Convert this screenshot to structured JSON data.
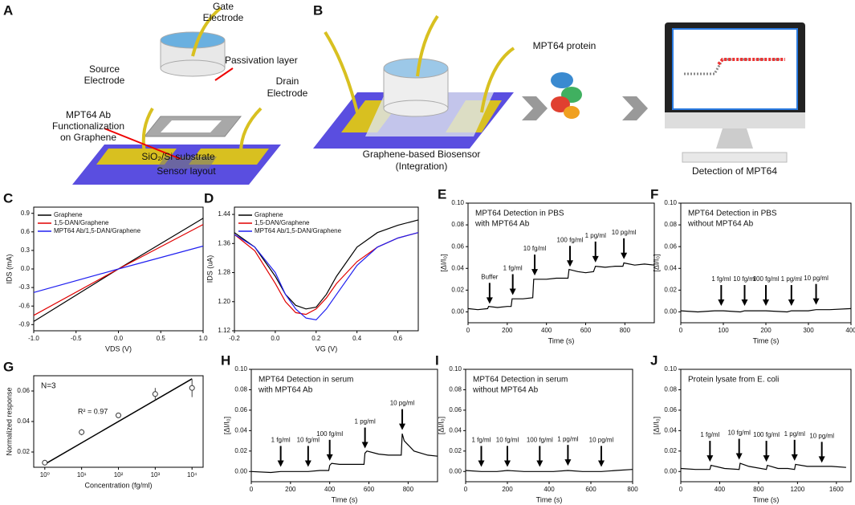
{
  "schematic": {
    "panel_a": "A",
    "panel_b": "B",
    "gate": [
      "Gate",
      "Electrode"
    ],
    "source": [
      "Source",
      "Electrode"
    ],
    "passivation": "Passivation layer",
    "drain": [
      "Drain",
      "Electrode"
    ],
    "ab": [
      "MPT64 Ab",
      "Functionalization",
      "on Graphene"
    ],
    "substrate": "SiO₂/Si substrate",
    "caption_a": "Sensor layout",
    "protein": "MPT64 protein",
    "caption_b": [
      "Graphene-based Biosensor",
      "(Integration)"
    ],
    "caption_c": "Detection of MPT64"
  },
  "chart_data": [
    {
      "type": "line",
      "panel": "C",
      "xlabel": "VDS (V)",
      "ylabel": "IDS (mA)",
      "legend": "upper left",
      "xlim": [
        -1,
        1
      ],
      "ylim": [
        -1.0,
        1.0
      ],
      "xticks": [
        {
          "value": -1,
          "label": "-1.0"
        },
        -0.5,
        {
          "value": 0,
          "label": "0.0"
        },
        0.5,
        {
          "value": 1,
          "label": "1.0"
        }
      ],
      "yticks": [
        -0.9,
        -0.6,
        -0.3,
        {
          "value": 0,
          "label": "0.0"
        },
        0.3,
        0.6,
        0.9
      ],
      "x": [
        -1,
        0,
        1
      ],
      "series": [
        {
          "name": "Graphene",
          "color": "#000000",
          "values": [
            -0.85,
            0,
            0.82
          ]
        },
        {
          "name": "1,5-DAN/Graphene",
          "color": "#e00000",
          "values": [
            -0.75,
            0,
            0.72
          ]
        },
        {
          "name": "MPT64 Ab/1,5-DAN/Graphene",
          "color": "#2020f0",
          "values": [
            -0.38,
            0,
            0.37
          ]
        }
      ]
    },
    {
      "type": "line",
      "panel": "D",
      "xlabel": "VG (V)",
      "ylabel": "IDS (uA)",
      "legend": "upper left",
      "xlim": [
        -0.2,
        0.7
      ],
      "ylim": [
        1.12,
        1.46
      ],
      "xticks": [
        -0.2,
        {
          "value": 0,
          "label": "0.0"
        },
        0.2,
        0.4,
        0.6
      ],
      "yticks": [
        1.12,
        {
          "value": 1.2,
          "label": "1.20"
        },
        1.28,
        1.36,
        1.44
      ],
      "x": [
        -0.2,
        -0.1,
        0,
        0.05,
        0.1,
        0.15,
        0.2,
        0.25,
        0.3,
        0.4,
        0.5,
        0.6,
        0.7
      ],
      "series": [
        {
          "name": "Graphene",
          "color": "#000000",
          "values": [
            1.39,
            1.35,
            1.27,
            1.22,
            1.19,
            1.18,
            1.185,
            1.22,
            1.27,
            1.35,
            1.39,
            1.41,
            1.425
          ]
        },
        {
          "name": "1,5-DAN/Graphene",
          "color": "#e00000",
          "values": [
            1.385,
            1.34,
            1.25,
            1.2,
            1.17,
            1.165,
            1.18,
            1.21,
            1.25,
            1.31,
            1.35,
            1.375,
            1.39
          ]
        },
        {
          "name": "MPT64 Ab/1,5-DAN/Graphene",
          "color": "#2020f0",
          "values": [
            1.385,
            1.35,
            1.28,
            1.22,
            1.18,
            1.155,
            1.15,
            1.18,
            1.22,
            1.3,
            1.35,
            1.375,
            1.39
          ]
        }
      ]
    },
    {
      "type": "line",
      "panel": "E",
      "xlabel": "Time (s)",
      "ylabel": "[ΔI/I₀]",
      "note": [
        "MPT64 Detection in PBS",
        "with MPT64 Ab"
      ],
      "xlim": [
        0,
        950
      ],
      "ylim": [
        -0.01,
        0.1
      ],
      "xticks": [
        0,
        200,
        400,
        600,
        800
      ],
      "yticks": [
        {
          "value": 0,
          "label": "0.00"
        },
        0.02,
        0.04,
        0.06,
        0.08,
        {
          "value": 0.1,
          "label": "0.10"
        }
      ],
      "x": [
        0,
        50,
        100,
        105,
        150,
        200,
        220,
        225,
        280,
        330,
        335,
        400,
        450,
        510,
        515,
        560,
        600,
        640,
        650,
        700,
        750,
        790,
        795,
        850,
        900,
        950
      ],
      "series": [
        {
          "color": "#000000",
          "values": [
            0.003,
            0.002,
            0.003,
            0.005,
            0.004,
            0.005,
            0.005,
            0.012,
            0.012,
            0.013,
            0.03,
            0.03,
            0.031,
            0.031,
            0.039,
            0.037,
            0.036,
            0.037,
            0.042,
            0.041,
            0.042,
            0.042,
            0.045,
            0.043,
            0.044,
            0.043
          ]
        }
      ],
      "annotations": [
        {
          "text": "Buffer",
          "x": 110,
          "y": 0.006
        },
        {
          "text": "1 fg/ml",
          "x": 228,
          "y": 0.014
        },
        {
          "text": "10 fg/ml",
          "x": 340,
          "y": 0.032
        },
        {
          "text": "100 fg/ml",
          "x": 520,
          "y": 0.04
        },
        {
          "text": "1 pg/ml",
          "x": 650,
          "y": 0.044
        },
        {
          "text": "10 pg/ml",
          "x": 795,
          "y": 0.047
        }
      ]
    },
    {
      "type": "line",
      "panel": "F",
      "xlabel": "Time (s)",
      "ylabel": "[ΔI/I₀]",
      "note": [
        "MPT64 Detection in PBS",
        "without MPT64 Ab"
      ],
      "xlim": [
        0,
        400
      ],
      "ylim": [
        -0.01,
        0.1
      ],
      "xticks": [
        0,
        100,
        200,
        300,
        400
      ],
      "yticks": [
        {
          "value": 0,
          "label": "0.00"
        },
        0.02,
        0.04,
        0.06,
        0.08,
        {
          "value": 0.1,
          "label": "0.10"
        }
      ],
      "x": [
        0,
        40,
        80,
        95,
        100,
        140,
        150,
        200,
        250,
        260,
        300,
        318,
        350,
        400
      ],
      "series": [
        {
          "color": "#000000",
          "values": [
            0.001,
            0,
            0.001,
            0.001,
            0.001,
            0,
            0.001,
            0.001,
            0,
            0.001,
            0.001,
            0.002,
            0.002,
            0.003
          ]
        }
      ],
      "annotations": [
        {
          "text": "1 fg/ml",
          "x": 95,
          "y": 0.004
        },
        {
          "text": "10 fg/ml",
          "x": 150,
          "y": 0.004
        },
        {
          "text": "100 fg/ml",
          "x": 200,
          "y": 0.004
        },
        {
          "text": "1 pg/ml",
          "x": 260,
          "y": 0.004
        },
        {
          "text": "10 pg/ml",
          "x": 318,
          "y": 0.005
        }
      ]
    },
    {
      "type": "scatter",
      "panel": "G",
      "xlabel": "Concentration (fg/ml)",
      "ylabel": "Normalized response",
      "xlog": true,
      "note": [
        "N=3"
      ],
      "fit_label": "R² = 0.97",
      "xlim": [
        0.5,
        20000
      ],
      "ylim": [
        0.01,
        0.07
      ],
      "xticks": [
        {
          "value": 1,
          "label": "10⁰"
        },
        {
          "value": 10,
          "label": "10¹"
        },
        {
          "value": 100,
          "label": "10²"
        },
        {
          "value": 1000,
          "label": "10³"
        },
        {
          "value": 10000,
          "label": "10⁴"
        }
      ],
      "yticks": [
        0.02,
        0.04,
        0.06
      ],
      "x": [
        1,
        10,
        100,
        1000,
        10000
      ],
      "values": [
        0.013,
        0.033,
        0.044,
        0.058,
        0.062
      ],
      "errors": [
        0.0005,
        0.002,
        0.001,
        0.004,
        0.006
      ],
      "fit": {
        "x": [
          1,
          10000
        ],
        "values": [
          0.012,
          0.068
        ]
      }
    },
    {
      "type": "line",
      "panel": "H",
      "xlabel": "Time (s)",
      "ylabel": "[ΔI/I₀]",
      "note": [
        "MPT64 Detection in serum",
        "with MPT64 Ab"
      ],
      "xlim": [
        0,
        950
      ],
      "ylim": [
        -0.01,
        0.1
      ],
      "xticks": [
        0,
        200,
        400,
        600,
        800
      ],
      "yticks": [
        {
          "value": 0,
          "label": "0.00"
        },
        0.02,
        0.04,
        0.06,
        0.08,
        {
          "value": 0.1,
          "label": "0.10"
        }
      ],
      "x": [
        0,
        100,
        150,
        200,
        290,
        350,
        395,
        400,
        410,
        450,
        500,
        575,
        580,
        590,
        650,
        700,
        765,
        770,
        780,
        830,
        900,
        950
      ],
      "series": [
        {
          "color": "#000000",
          "values": [
            0,
            -0.001,
            0,
            0,
            0,
            0.001,
            0.001,
            0.006,
            0.008,
            0.007,
            0.007,
            0.007,
            0.018,
            0.02,
            0.017,
            0.016,
            0.016,
            0.037,
            0.03,
            0.02,
            0.016,
            0.015
          ]
        }
      ],
      "annotations": [
        {
          "text": "1 fg/ml",
          "x": 150,
          "y": 0.003
        },
        {
          "text": "10 fg/ml",
          "x": 290,
          "y": 0.003
        },
        {
          "text": "100 fg/ml",
          "x": 400,
          "y": 0.009
        },
        {
          "text": "1 pg/ml",
          "x": 580,
          "y": 0.021
        },
        {
          "text": "10 pg/ml",
          "x": 770,
          "y": 0.039
        }
      ]
    },
    {
      "type": "line",
      "panel": "I",
      "xlabel": "Time (s)",
      "ylabel": "[ΔI/I₀]",
      "note": [
        "MPT64 Detection in serum",
        "without MPT64 Ab"
      ],
      "xlim": [
        0,
        800
      ],
      "ylim": [
        -0.01,
        0.1
      ],
      "xticks": [
        0,
        200,
        400,
        600,
        800
      ],
      "yticks": [
        {
          "value": 0,
          "label": "0.00"
        },
        0.02,
        0.04,
        0.06,
        0.08,
        {
          "value": 0.1,
          "label": "0.10"
        }
      ],
      "x": [
        0,
        75,
        150,
        200,
        280,
        355,
        420,
        490,
        560,
        650,
        720,
        800
      ],
      "series": [
        {
          "color": "#000000",
          "values": [
            0.001,
            0,
            0,
            0.001,
            0,
            0,
            0,
            0.001,
            0,
            0,
            0.001,
            0.002
          ]
        }
      ],
      "annotations": [
        {
          "text": "1 fg/ml",
          "x": 75,
          "y": 0.003
        },
        {
          "text": "10 fg/ml",
          "x": 200,
          "y": 0.003
        },
        {
          "text": "100 fg/ml",
          "x": 355,
          "y": 0.003
        },
        {
          "text": "1 pg/ml",
          "x": 490,
          "y": 0.004
        },
        {
          "text": "10 pg/ml",
          "x": 650,
          "y": 0.003
        }
      ]
    },
    {
      "type": "line",
      "panel": "J",
      "xlabel": "Time (s)",
      "ylabel": "[ΔI/I₀]",
      "note": [
        "Protein lysate from E. coli"
      ],
      "xlim": [
        0,
        1750
      ],
      "ylim": [
        -0.01,
        0.1
      ],
      "xticks": [
        0,
        400,
        800,
        1200,
        1600
      ],
      "yticks": [
        {
          "value": 0,
          "label": "0.00"
        },
        0.02,
        0.04,
        0.06,
        0.08,
        {
          "value": 0.1,
          "label": "0.10"
        }
      ],
      "x": [
        0,
        150,
        300,
        310,
        450,
        600,
        610,
        700,
        880,
        890,
        1000,
        1100,
        1170,
        1180,
        1300,
        1450,
        1550,
        1700
      ],
      "series": [
        {
          "color": "#000000",
          "values": [
            0.003,
            0.002,
            0.002,
            0.006,
            0.003,
            0.002,
            0.008,
            0.005,
            0.002,
            0.006,
            0.003,
            0.003,
            0.002,
            0.007,
            0.005,
            0.005,
            0.005,
            0.004
          ]
        }
      ],
      "annotations": [
        {
          "text": "1 fg/ml",
          "x": 300,
          "y": 0.008
        },
        {
          "text": "10 fg/ml",
          "x": 600,
          "y": 0.01
        },
        {
          "text": "100 fg/ml",
          "x": 880,
          "y": 0.008
        },
        {
          "text": "1 pg/ml",
          "x": 1170,
          "y": 0.009
        },
        {
          "text": "10 pg/ml",
          "x": 1450,
          "y": 0.007
        }
      ]
    }
  ]
}
